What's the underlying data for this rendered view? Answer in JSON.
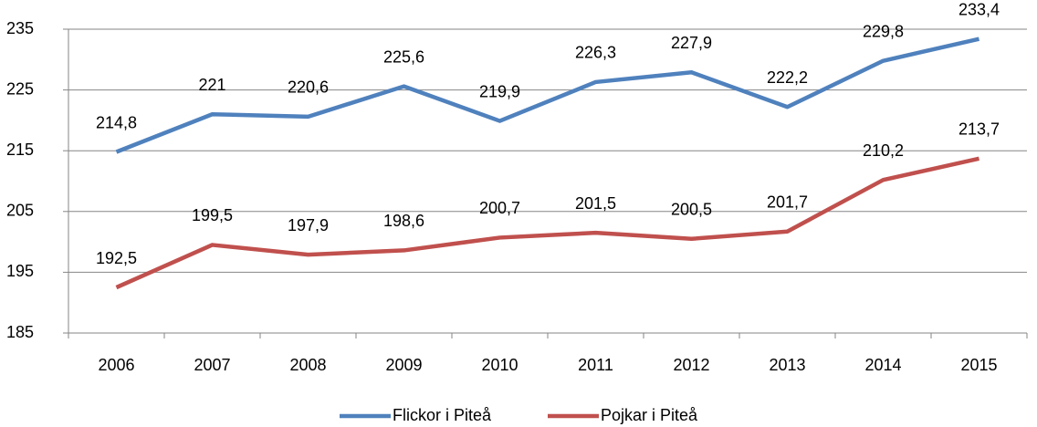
{
  "chart_data": {
    "type": "line",
    "categories": [
      "2006",
      "2007",
      "2008",
      "2009",
      "2010",
      "2011",
      "2012",
      "2013",
      "2014",
      "2015"
    ],
    "series": [
      {
        "name": "Flickor i Piteå",
        "color": "#4f81bd",
        "values": [
          214.8,
          221,
          220.6,
          225.6,
          219.9,
          226.3,
          227.9,
          222.2,
          229.8,
          233.4
        ],
        "value_labels": [
          "214,8",
          "221",
          "220,6",
          "225,6",
          "219,9",
          "226,3",
          "227,9",
          "222,2",
          "229,8",
          "233,4"
        ]
      },
      {
        "name": "Pojkar i Piteå",
        "color": "#c0504d",
        "values": [
          192.5,
          199.5,
          197.9,
          198.6,
          200.7,
          201.5,
          200.5,
          201.7,
          210.2,
          213.7
        ],
        "value_labels": [
          "192,5",
          "199,5",
          "197,9",
          "198,6",
          "200,7",
          "201,5",
          "200,5",
          "201,7",
          "210,2",
          "213,7"
        ]
      }
    ],
    "ylim": [
      185,
      235
    ],
    "yticks": [
      185,
      195,
      205,
      215,
      225,
      235
    ],
    "grid": true,
    "legend": "bottom"
  }
}
